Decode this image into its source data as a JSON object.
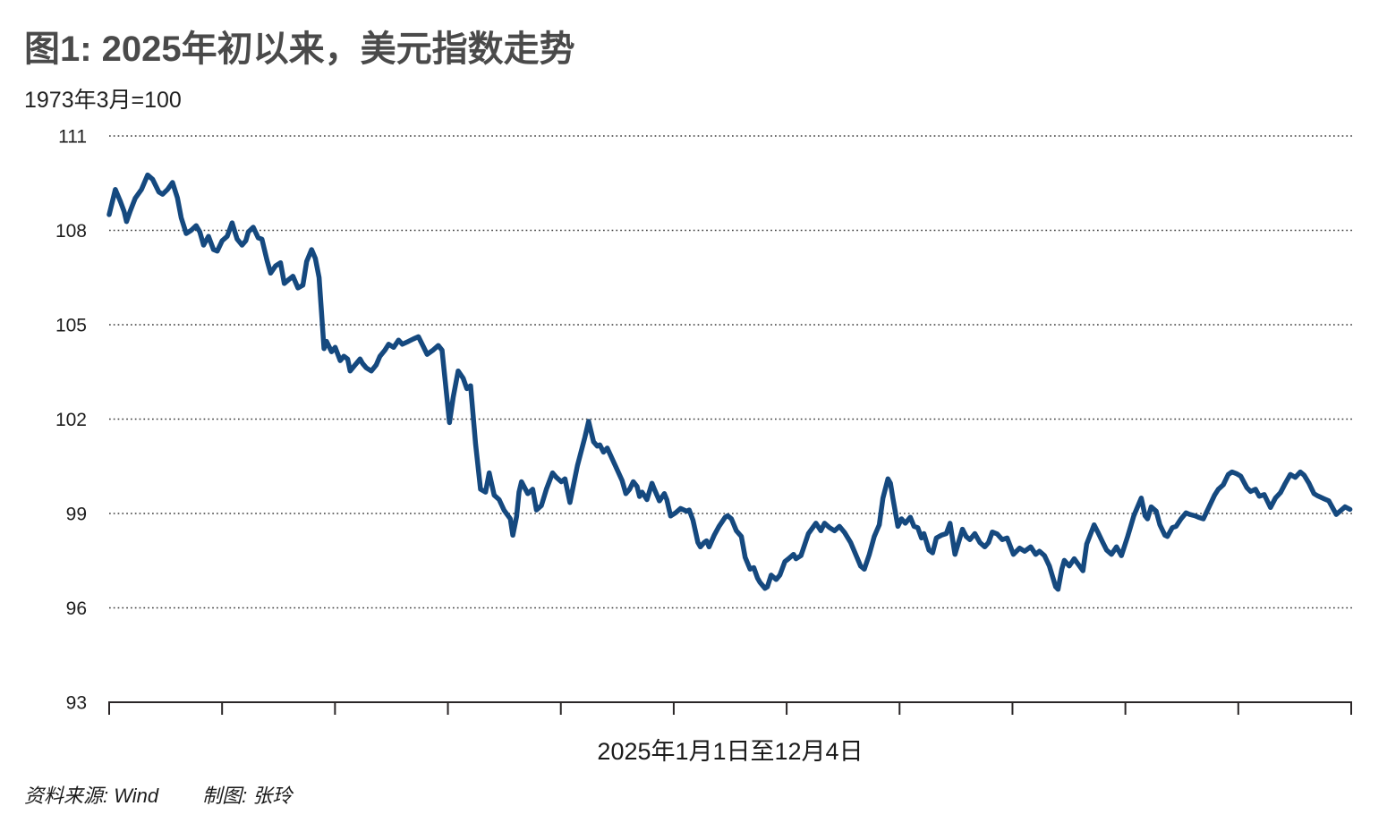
{
  "header": {
    "title": "图1: 2025年初以来，美元指数走势",
    "subtitle": "1973年3月=100"
  },
  "footer": {
    "source": "资料来源: Wind",
    "credit": "制图: 张玲"
  },
  "chart_data": {
    "type": "line",
    "title": "图1: 2025年初以来，美元指数走势",
    "series_name": "美元指数",
    "xlabel": "2025年1月1日至12月4日",
    "ylabel": "1973年3月=100",
    "ylim": [
      93,
      111
    ],
    "y_ticks": [
      93,
      96,
      99,
      102,
      105,
      108,
      111
    ],
    "x_tick_count": 12,
    "grid": "horizontal-dotted",
    "legend": "none",
    "line_color": "#15497f",
    "axis_color": "#2a2627",
    "grid_color": "#3c3c3c",
    "points": [
      [
        0,
        108.5
      ],
      [
        0.005,
        109.3
      ],
      [
        0.009,
        108.92
      ],
      [
        0.012,
        108.6
      ],
      [
        0.014,
        108.28
      ],
      [
        0.017,
        108.62
      ],
      [
        0.021,
        109.02
      ],
      [
        0.026,
        109.3
      ],
      [
        0.031,
        109.76
      ],
      [
        0.035,
        109.62
      ],
      [
        0.04,
        109.22
      ],
      [
        0.043,
        109.15
      ],
      [
        0.047,
        109.3
      ],
      [
        0.051,
        109.52
      ],
      [
        0.055,
        109.03
      ],
      [
        0.058,
        108.4
      ],
      [
        0.062,
        107.9
      ],
      [
        0.066,
        108.0
      ],
      [
        0.07,
        108.15
      ],
      [
        0.073,
        107.95
      ],
      [
        0.076,
        107.53
      ],
      [
        0.08,
        107.81
      ],
      [
        0.084,
        107.39
      ],
      [
        0.087,
        107.34
      ],
      [
        0.091,
        107.67
      ],
      [
        0.095,
        107.81
      ],
      [
        0.099,
        108.24
      ],
      [
        0.103,
        107.72
      ],
      [
        0.107,
        107.53
      ],
      [
        0.11,
        107.67
      ],
      [
        0.112,
        107.95
      ],
      [
        0.116,
        108.1
      ],
      [
        0.12,
        107.76
      ],
      [
        0.123,
        107.72
      ],
      [
        0.127,
        107.06
      ],
      [
        0.13,
        106.64
      ],
      [
        0.134,
        106.87
      ],
      [
        0.138,
        106.97
      ],
      [
        0.141,
        106.31
      ],
      [
        0.145,
        106.45
      ],
      [
        0.148,
        106.54
      ],
      [
        0.152,
        106.17
      ],
      [
        0.156,
        106.26
      ],
      [
        0.159,
        107.01
      ],
      [
        0.163,
        107.39
      ],
      [
        0.166,
        107.11
      ],
      [
        0.169,
        106.5
      ],
      [
        0.173,
        104.24
      ],
      [
        0.175,
        104.47
      ],
      [
        0.179,
        104.14
      ],
      [
        0.182,
        104.28
      ],
      [
        0.186,
        103.86
      ],
      [
        0.189,
        104.0
      ],
      [
        0.192,
        103.91
      ],
      [
        0.194,
        103.53
      ],
      [
        0.198,
        103.72
      ],
      [
        0.202,
        103.91
      ],
      [
        0.204,
        103.77
      ],
      [
        0.207,
        103.63
      ],
      [
        0.211,
        103.53
      ],
      [
        0.215,
        103.72
      ],
      [
        0.218,
        104.0
      ],
      [
        0.222,
        104.19
      ],
      [
        0.225,
        104.38
      ],
      [
        0.229,
        104.28
      ],
      [
        0.233,
        104.51
      ],
      [
        0.236,
        104.38
      ],
      [
        0.241,
        104.47
      ],
      [
        0.245,
        104.55
      ],
      [
        0.249,
        104.62
      ],
      [
        0.253,
        104.3
      ],
      [
        0.256,
        104.06
      ],
      [
        0.261,
        104.2
      ],
      [
        0.265,
        104.34
      ],
      [
        0.268,
        104.19
      ],
      [
        0.274,
        101.89
      ],
      [
        0.277,
        102.7
      ],
      [
        0.281,
        103.53
      ],
      [
        0.285,
        103.3
      ],
      [
        0.288,
        102.97
      ],
      [
        0.291,
        103.06
      ],
      [
        0.295,
        101.2
      ],
      [
        0.299,
        99.77
      ],
      [
        0.303,
        99.68
      ],
      [
        0.306,
        100.29
      ],
      [
        0.31,
        99.58
      ],
      [
        0.314,
        99.44
      ],
      [
        0.318,
        99.1
      ],
      [
        0.323,
        98.83
      ],
      [
        0.325,
        98.31
      ],
      [
        0.328,
        98.9
      ],
      [
        0.33,
        99.68
      ],
      [
        0.332,
        100.01
      ],
      [
        0.337,
        99.63
      ],
      [
        0.341,
        99.77
      ],
      [
        0.344,
        99.11
      ],
      [
        0.348,
        99.25
      ],
      [
        0.352,
        99.77
      ],
      [
        0.357,
        100.29
      ],
      [
        0.36,
        100.15
      ],
      [
        0.364,
        100.01
      ],
      [
        0.367,
        100.1
      ],
      [
        0.371,
        99.35
      ],
      [
        0.377,
        100.52
      ],
      [
        0.383,
        101.42
      ],
      [
        0.386,
        101.93
      ],
      [
        0.39,
        101.28
      ],
      [
        0.393,
        101.14
      ],
      [
        0.395,
        101.18
      ],
      [
        0.398,
        100.95
      ],
      [
        0.401,
        101.08
      ],
      [
        0.408,
        100.48
      ],
      [
        0.413,
        100.05
      ],
      [
        0.416,
        99.63
      ],
      [
        0.419,
        99.77
      ],
      [
        0.422,
        100.01
      ],
      [
        0.425,
        99.86
      ],
      [
        0.427,
        99.54
      ],
      [
        0.429,
        99.68
      ],
      [
        0.433,
        99.44
      ],
      [
        0.437,
        99.96
      ],
      [
        0.439,
        99.77
      ],
      [
        0.443,
        99.4
      ],
      [
        0.447,
        99.63
      ],
      [
        0.449,
        99.44
      ],
      [
        0.452,
        98.92
      ],
      [
        0.456,
        99.02
      ],
      [
        0.46,
        99.16
      ],
      [
        0.465,
        99.07
      ],
      [
        0.467,
        99.11
      ],
      [
        0.47,
        98.79
      ],
      [
        0.474,
        98.08
      ],
      [
        0.476,
        97.94
      ],
      [
        0.479,
        98.08
      ],
      [
        0.481,
        98.13
      ],
      [
        0.483,
        97.94
      ],
      [
        0.487,
        98.3
      ],
      [
        0.491,
        98.59
      ],
      [
        0.496,
        98.88
      ],
      [
        0.498,
        98.93
      ],
      [
        0.501,
        98.83
      ],
      [
        0.505,
        98.45
      ],
      [
        0.509,
        98.27
      ],
      [
        0.512,
        97.61
      ],
      [
        0.516,
        97.23
      ],
      [
        0.519,
        97.28
      ],
      [
        0.522,
        96.95
      ],
      [
        0.524,
        96.81
      ],
      [
        0.528,
        96.62
      ],
      [
        0.53,
        96.67
      ],
      [
        0.533,
        97.04
      ],
      [
        0.537,
        96.9
      ],
      [
        0.54,
        97.04
      ],
      [
        0.544,
        97.47
      ],
      [
        0.547,
        97.56
      ],
      [
        0.551,
        97.7
      ],
      [
        0.553,
        97.56
      ],
      [
        0.557,
        97.66
      ],
      [
        0.563,
        98.36
      ],
      [
        0.569,
        98.69
      ],
      [
        0.573,
        98.45
      ],
      [
        0.576,
        98.69
      ],
      [
        0.58,
        98.55
      ],
      [
        0.584,
        98.45
      ],
      [
        0.588,
        98.59
      ],
      [
        0.592,
        98.4
      ],
      [
        0.597,
        98.08
      ],
      [
        0.602,
        97.61
      ],
      [
        0.605,
        97.33
      ],
      [
        0.608,
        97.23
      ],
      [
        0.612,
        97.7
      ],
      [
        0.616,
        98.27
      ],
      [
        0.62,
        98.64
      ],
      [
        0.623,
        99.49
      ],
      [
        0.627,
        100.1
      ],
      [
        0.629,
        99.96
      ],
      [
        0.631,
        99.49
      ],
      [
        0.635,
        98.59
      ],
      [
        0.638,
        98.83
      ],
      [
        0.641,
        98.69
      ],
      [
        0.645,
        98.88
      ],
      [
        0.648,
        98.59
      ],
      [
        0.651,
        98.55
      ],
      [
        0.654,
        98.22
      ],
      [
        0.656,
        98.36
      ],
      [
        0.66,
        97.84
      ],
      [
        0.663,
        97.75
      ],
      [
        0.666,
        98.22
      ],
      [
        0.67,
        98.31
      ],
      [
        0.674,
        98.36
      ],
      [
        0.677,
        98.69
      ],
      [
        0.681,
        97.7
      ],
      [
        0.687,
        98.5
      ],
      [
        0.69,
        98.27
      ],
      [
        0.693,
        98.17
      ],
      [
        0.697,
        98.36
      ],
      [
        0.701,
        98.08
      ],
      [
        0.705,
        97.94
      ],
      [
        0.708,
        98.08
      ],
      [
        0.711,
        98.41
      ],
      [
        0.715,
        98.35
      ],
      [
        0.719,
        98.17
      ],
      [
        0.723,
        98.22
      ],
      [
        0.728,
        97.7
      ],
      [
        0.733,
        97.9
      ],
      [
        0.737,
        97.8
      ],
      [
        0.742,
        97.94
      ],
      [
        0.746,
        97.7
      ],
      [
        0.749,
        97.8
      ],
      [
        0.753,
        97.66
      ],
      [
        0.757,
        97.33
      ],
      [
        0.762,
        96.67
      ],
      [
        0.764,
        96.59
      ],
      [
        0.767,
        97.23
      ],
      [
        0.769,
        97.51
      ],
      [
        0.773,
        97.33
      ],
      [
        0.777,
        97.56
      ],
      [
        0.78,
        97.4
      ],
      [
        0.784,
        97.18
      ],
      [
        0.787,
        98.03
      ],
      [
        0.793,
        98.64
      ],
      [
        0.796,
        98.41
      ],
      [
        0.8,
        98.08
      ],
      [
        0.803,
        97.84
      ],
      [
        0.807,
        97.7
      ],
      [
        0.811,
        97.94
      ],
      [
        0.815,
        97.66
      ],
      [
        0.82,
        98.27
      ],
      [
        0.825,
        98.93
      ],
      [
        0.831,
        99.49
      ],
      [
        0.834,
        98.93
      ],
      [
        0.836,
        98.83
      ],
      [
        0.839,
        99.21
      ],
      [
        0.843,
        99.07
      ],
      [
        0.846,
        98.64
      ],
      [
        0.85,
        98.31
      ],
      [
        0.852,
        98.27
      ],
      [
        0.856,
        98.55
      ],
      [
        0.859,
        98.59
      ],
      [
        0.863,
        98.83
      ],
      [
        0.867,
        99.02
      ],
      [
        0.87,
        98.97
      ],
      [
        0.874,
        98.93
      ],
      [
        0.877,
        98.88
      ],
      [
        0.881,
        98.83
      ],
      [
        0.886,
        99.25
      ],
      [
        0.89,
        99.58
      ],
      [
        0.893,
        99.77
      ],
      [
        0.897,
        99.91
      ],
      [
        0.901,
        100.24
      ],
      [
        0.904,
        100.32
      ],
      [
        0.908,
        100.26
      ],
      [
        0.911,
        100.19
      ],
      [
        0.916,
        99.82
      ],
      [
        0.919,
        99.7
      ],
      [
        0.923,
        99.77
      ],
      [
        0.926,
        99.55
      ],
      [
        0.93,
        99.6
      ],
      [
        0.935,
        99.19
      ],
      [
        0.939,
        99.49
      ],
      [
        0.943,
        99.66
      ],
      [
        0.947,
        99.96
      ],
      [
        0.951,
        100.24
      ],
      [
        0.955,
        100.15
      ],
      [
        0.959,
        100.32
      ],
      [
        0.962,
        100.22
      ],
      [
        0.966,
        99.96
      ],
      [
        0.97,
        99.63
      ],
      [
        0.973,
        99.56
      ],
      [
        0.978,
        99.47
      ],
      [
        0.982,
        99.4
      ],
      [
        0.988,
        98.97
      ],
      [
        0.995,
        99.21
      ],
      [
        0.999,
        99.13
      ]
    ]
  }
}
